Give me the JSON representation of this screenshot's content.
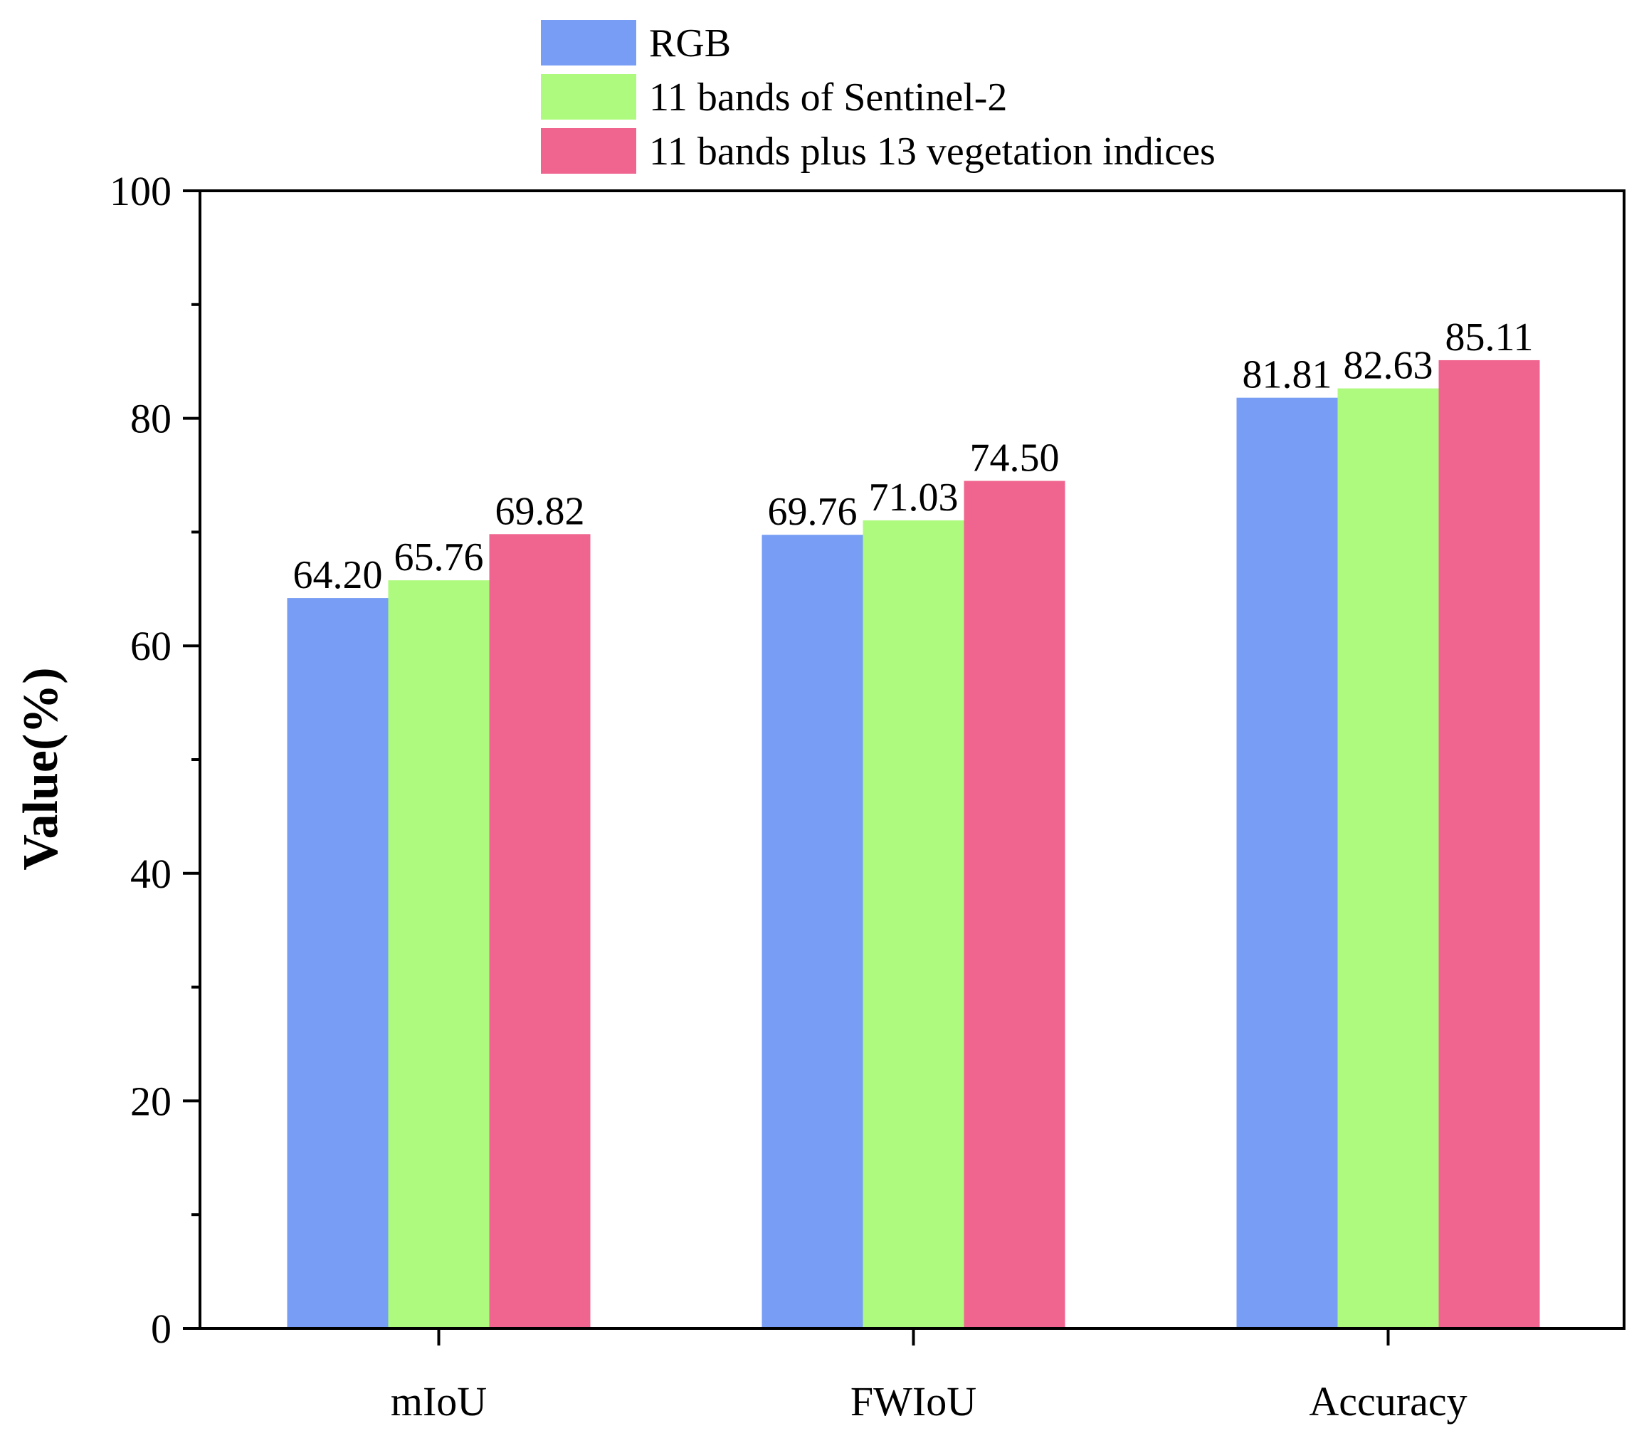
{
  "chart_data": {
    "type": "bar",
    "title": "",
    "xlabel": "",
    "ylabel": "Value(%)",
    "ylim": [
      0,
      100
    ],
    "yticks": [
      0,
      20,
      40,
      60,
      80,
      100
    ],
    "yticks_labels": [
      "0",
      "20",
      "40",
      "60",
      "80",
      "100"
    ],
    "grid": false,
    "legend_position": "top-center",
    "categories": [
      "mIoU",
      "FWIoU",
      "Accuracy"
    ],
    "series": [
      {
        "name": "RGB",
        "color": "#779df4",
        "values": [
          64.2,
          69.76,
          81.81
        ],
        "labels": [
          "64.20",
          "69.76",
          "81.81"
        ]
      },
      {
        "name": "11 bands of Sentinel-2",
        "color": "#adfa7e",
        "values": [
          65.76,
          71.03,
          82.63
        ],
        "labels": [
          "65.76",
          "71.03",
          "82.63"
        ]
      },
      {
        "name": "11 bands plus 13 vegetation indices",
        "color": "#f06590",
        "values": [
          69.82,
          74.5,
          85.11
        ],
        "labels": [
          "69.82",
          "74.50",
          "85.11"
        ]
      }
    ]
  }
}
